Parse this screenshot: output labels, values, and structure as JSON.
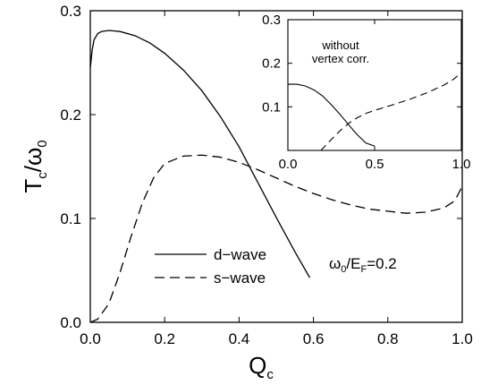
{
  "chart_data": [
    {
      "type": "line",
      "xlabel": "Q",
      "xlabel_sub": "c",
      "ylabel": "T",
      "ylabel_sub": "c",
      "ylabel_sep": "/",
      "ylabel_var": "ω",
      "ylabel_var_sub": "0",
      "xlim": [
        0,
        1
      ],
      "ylim": [
        0,
        0.3
      ],
      "xticks": [
        "0.0",
        "0.2",
        "0.4",
        "0.6",
        "0.8",
        "1.0"
      ],
      "yticks": [
        "0.0",
        "0.1",
        "0.2",
        "0.3"
      ],
      "annotation": {
        "main": "ω",
        "sub1": "0",
        "mid": "/E",
        "sub2": "F",
        "tail": "=0.2"
      },
      "legend": {
        "position": "lower-center"
      },
      "series": [
        {
          "name": "d−wave",
          "style": "solid",
          "points": [
            [
              0.0,
              0.245
            ],
            [
              0.005,
              0.262
            ],
            [
              0.01,
              0.272
            ],
            [
              0.02,
              0.278
            ],
            [
              0.03,
              0.28
            ],
            [
              0.05,
              0.281
            ],
            [
              0.08,
              0.28
            ],
            [
              0.12,
              0.276
            ],
            [
              0.16,
              0.269
            ],
            [
              0.2,
              0.259
            ],
            [
              0.25,
              0.243
            ],
            [
              0.3,
              0.223
            ],
            [
              0.35,
              0.198
            ],
            [
              0.4,
              0.169
            ],
            [
              0.45,
              0.135
            ],
            [
              0.5,
              0.101
            ],
            [
              0.55,
              0.068
            ],
            [
              0.59,
              0.043
            ]
          ]
        },
        {
          "name": "s−wave",
          "style": "dashed",
          "points": [
            [
              0.0,
              0.0
            ],
            [
              0.02,
              0.003
            ],
            [
              0.05,
              0.018
            ],
            [
              0.08,
              0.048
            ],
            [
              0.11,
              0.083
            ],
            [
              0.14,
              0.115
            ],
            [
              0.17,
              0.139
            ],
            [
              0.2,
              0.153
            ],
            [
              0.25,
              0.16
            ],
            [
              0.3,
              0.161
            ],
            [
              0.35,
              0.159
            ],
            [
              0.4,
              0.154
            ],
            [
              0.45,
              0.147
            ],
            [
              0.5,
              0.139
            ],
            [
              0.55,
              0.131
            ],
            [
              0.6,
              0.124
            ],
            [
              0.65,
              0.118
            ],
            [
              0.7,
              0.113
            ],
            [
              0.75,
              0.109
            ],
            [
              0.8,
              0.107
            ],
            [
              0.85,
              0.105
            ],
            [
              0.9,
              0.106
            ],
            [
              0.95,
              0.11
            ],
            [
              0.98,
              0.117
            ],
            [
              1.0,
              0.131
            ]
          ]
        }
      ]
    },
    {
      "type": "line",
      "title_line1": "without",
      "title_line2": "vertex corr.",
      "xlim": [
        0,
        1
      ],
      "ylim": [
        0,
        0.3
      ],
      "xticks": [
        "0.0",
        "0.5",
        "1.0"
      ],
      "yticks": [
        "0.1",
        "0.2",
        "0.3"
      ],
      "series": [
        {
          "style": "solid",
          "points": [
            [
              0.0,
              0.152
            ],
            [
              0.05,
              0.152
            ],
            [
              0.1,
              0.148
            ],
            [
              0.15,
              0.139
            ],
            [
              0.2,
              0.125
            ],
            [
              0.25,
              0.105
            ],
            [
              0.3,
              0.083
            ],
            [
              0.35,
              0.059
            ],
            [
              0.4,
              0.036
            ],
            [
              0.45,
              0.017
            ],
            [
              0.5,
              0.01
            ]
          ]
        },
        {
          "style": "dashed",
          "points": [
            [
              0.19,
              0.0
            ],
            [
              0.25,
              0.025
            ],
            [
              0.3,
              0.045
            ],
            [
              0.35,
              0.062
            ],
            [
              0.4,
              0.075
            ],
            [
              0.45,
              0.085
            ],
            [
              0.5,
              0.092
            ],
            [
              0.55,
              0.098
            ],
            [
              0.6,
              0.104
            ],
            [
              0.7,
              0.117
            ],
            [
              0.8,
              0.132
            ],
            [
              0.9,
              0.15
            ],
            [
              0.95,
              0.162
            ],
            [
              1.0,
              0.178
            ]
          ]
        }
      ]
    }
  ]
}
